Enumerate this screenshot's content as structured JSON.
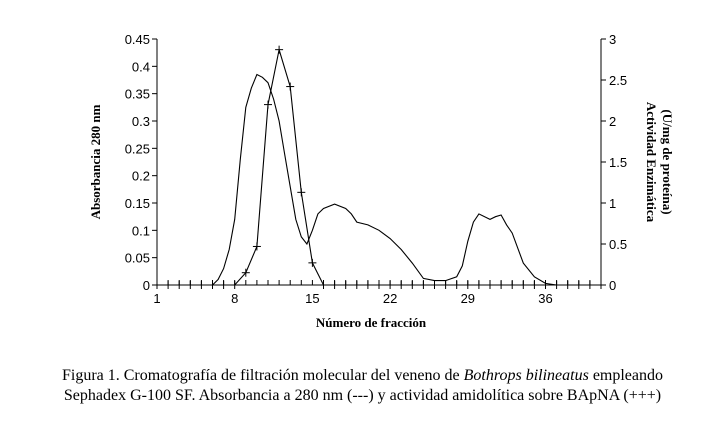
{
  "chart_data": {
    "type": "line",
    "xlabel": "Número de fracción",
    "ylabel_left": "Absorbancia 280 nm",
    "ylabel_right_line1": "Actividad Enzimática",
    "ylabel_right_line2": "(U/mg de proteína)",
    "xlim": [
      1,
      41
    ],
    "ylim_left": [
      0,
      0.45
    ],
    "ylim_right": [
      0,
      3
    ],
    "x_ticks": [
      "1",
      "8",
      "15",
      "22",
      "29",
      "36"
    ],
    "x_tick_values": [
      1,
      8,
      15,
      22,
      29,
      36
    ],
    "y_left_ticks": [
      "0",
      "0.05",
      "0.1",
      "0.15",
      "0.2",
      "0.25",
      "0.3",
      "0.35",
      "0.4",
      "0.45"
    ],
    "y_left_tick_values": [
      0,
      0.05,
      0.1,
      0.15,
      0.2,
      0.25,
      0.3,
      0.35,
      0.4,
      0.45
    ],
    "y_right_ticks": [
      "0",
      "0.5",
      "1",
      "1.5",
      "2",
      "2.5",
      "3"
    ],
    "y_right_tick_values": [
      0,
      0.5,
      1,
      1.5,
      2,
      2.5,
      3
    ],
    "series": [
      {
        "axis": "left",
        "marker": "none",
        "x": [
          6,
          6.5,
          7,
          7.5,
          8,
          8.5,
          9,
          9.5,
          10,
          10.5,
          11,
          11.5,
          12,
          12.5,
          13,
          13.5,
          14,
          14.5,
          15,
          15.5,
          16,
          17,
          18,
          18.5,
          19,
          20,
          21,
          22,
          23,
          24,
          25,
          26,
          27,
          28,
          28.5,
          29,
          29.5,
          30,
          31,
          31.5,
          32,
          32.5,
          33,
          34,
          35,
          36,
          37,
          38,
          39,
          40,
          41
        ],
        "y": [
          0,
          0.01,
          0.03,
          0.065,
          0.12,
          0.23,
          0.325,
          0.36,
          0.385,
          0.38,
          0.37,
          0.34,
          0.3,
          0.24,
          0.18,
          0.12,
          0.088,
          0.075,
          0.1,
          0.13,
          0.14,
          0.148,
          0.14,
          0.13,
          0.115,
          0.11,
          0.1,
          0.085,
          0.065,
          0.04,
          0.012,
          0.008,
          0.008,
          0.015,
          0.035,
          0.08,
          0.115,
          0.13,
          0.12,
          0.125,
          0.128,
          0.11,
          0.095,
          0.04,
          0.015,
          0.003,
          0,
          0,
          0,
          0,
          0
        ]
      },
      {
        "axis": "right",
        "marker": "plus",
        "x": [
          1,
          2,
          3,
          4,
          5,
          6,
          7,
          8,
          9,
          10,
          11,
          12,
          13,
          14,
          15,
          16,
          17,
          18,
          19,
          20,
          21,
          22,
          23,
          24,
          25,
          26,
          27,
          28,
          29,
          30,
          31,
          32,
          33,
          34,
          35,
          36,
          37,
          38,
          39,
          40,
          41
        ],
        "y": [
          0,
          0,
          0,
          0,
          0,
          0,
          0,
          0,
          0.15,
          0.47,
          2.2,
          2.87,
          2.42,
          1.13,
          0.27,
          0,
          0,
          0,
          0,
          0,
          0,
          0,
          0,
          0,
          0,
          0,
          0,
          0,
          0,
          0,
          0,
          0,
          0,
          0,
          0,
          0,
          0,
          0,
          0,
          0,
          0
        ]
      }
    ]
  },
  "caption": {
    "line1_prefix": "Figura 1. Cromatografía de filtración molecular del veneno de ",
    "line1_italic": "Bothrops bilineatus",
    "line1_suffix": " empleando",
    "line2": "Sephadex G-100 SF. Absorbancia a 280 nm (---) y actividad amidolítica sobre BApNA (+++)"
  }
}
